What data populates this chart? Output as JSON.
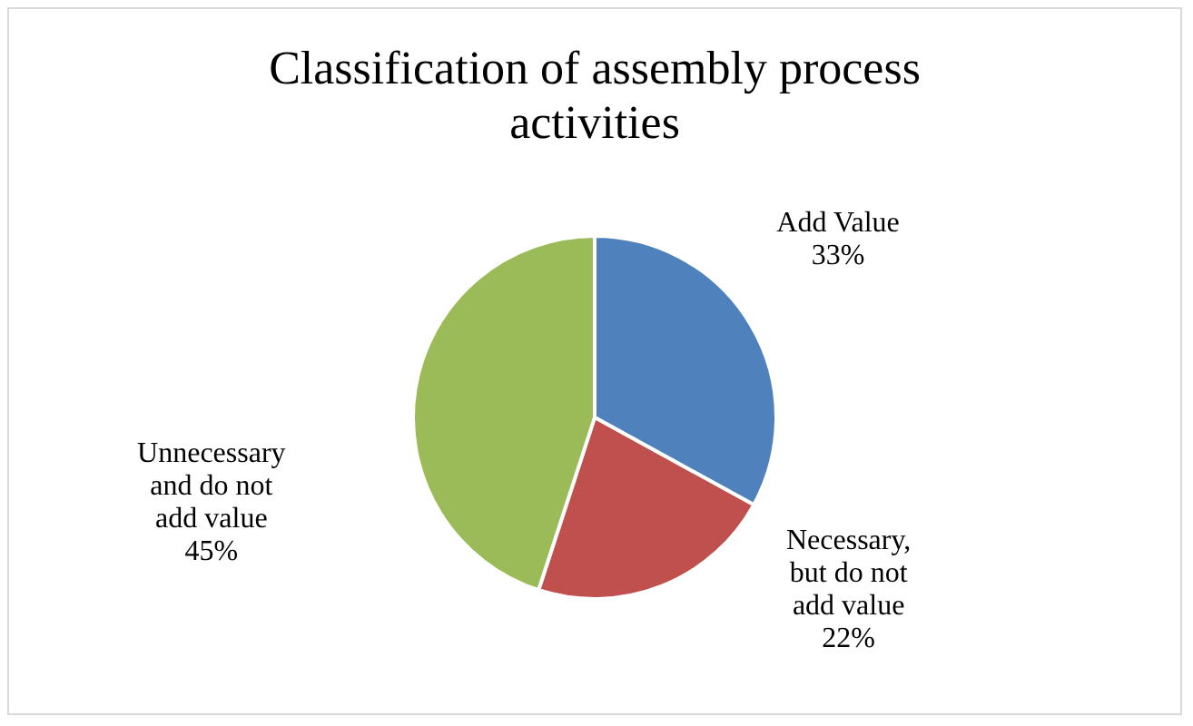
{
  "chart_data": {
    "type": "pie",
    "title": "Classification of assembly process activities",
    "categories": [
      "Add Value",
      "Necessary, but do not add value",
      "Unnecessary and do not add value"
    ],
    "values": [
      33,
      22,
      45
    ],
    "value_labels": [
      "33%",
      "22%",
      "45%"
    ],
    "colors": [
      "#4f81bd",
      "#c0504d",
      "#9bbb59"
    ]
  }
}
